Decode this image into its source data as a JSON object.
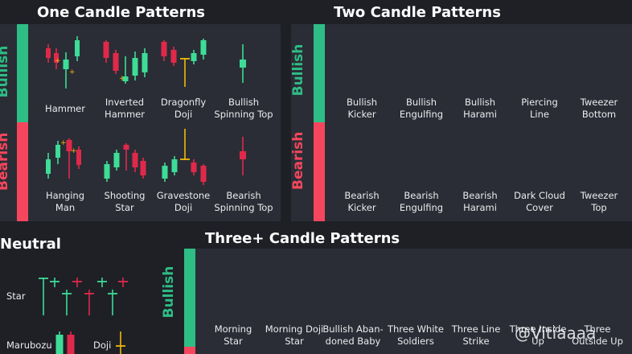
{
  "colors": {
    "bull": "#2ebd85",
    "bear": "#f6465d",
    "candle_bull": "#3ddc97",
    "candle_bear": "#e0294a",
    "doji": "#f0b90b"
  },
  "one_candle": {
    "title": "One Candle Patterns",
    "bullish_label": "Bullish",
    "bearish_label": "Bearish",
    "bullish": [
      "Hammer",
      "Inverted\nHammer",
      "Dragonfly\nDoji",
      "Bullish\nSpinning Top"
    ],
    "bearish": [
      "Hanging\nMan",
      "Shooting\nStar",
      "Gravestone\nDoji",
      "Bearish\nSpinning Top"
    ]
  },
  "two_candle": {
    "title": "Two Candle Patterns",
    "bullish_label": "Bullish",
    "bearish_label": "Bearish",
    "bullish": [
      "Bullish\nKicker",
      "Bullish\nEngulfing",
      "Bullish\nHarami",
      "Piercing\nLine",
      "Tweezer\nBottom"
    ],
    "bearish": [
      "Bearish\nKicker",
      "Bearish\nEngulfing",
      "Bearish\nHarami",
      "Dark Cloud\nCover",
      "Tweezer\nTop"
    ]
  },
  "neutral": {
    "title": "Neutral",
    "items": [
      "Star",
      "Marubozu",
      "Doji"
    ]
  },
  "three_candle": {
    "title": "Three+ Candle Patterns",
    "bullish_label": "Bullish",
    "bullish": [
      "Morning\nStar",
      "Morning Doji\nStar",
      "Bullish Aban-\ndoned Baby",
      "Three White\nSoldiers",
      "Three Line\nStrike",
      "Three Inside\nUp",
      "Three\nOutside Up"
    ]
  },
  "watermark": "@Vitiaaaa"
}
